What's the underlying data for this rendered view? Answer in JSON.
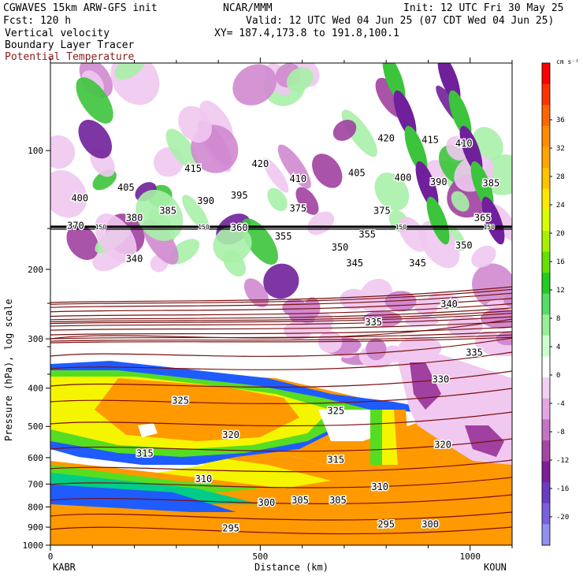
{
  "header": {
    "model": "CGWAVES 15km ARW-GFS init",
    "forecast": "Fcst:  120 h",
    "field1": "Vertical velocity",
    "field2": "Boundary Layer Tracer",
    "field3": "Potential Temperature",
    "org": "NCAR/MMM",
    "init": "Init: 12 UTC Fri 30 May 25",
    "valid": "Valid: 12 UTC Wed 04 Jun 25 (07 CDT Wed 04 Jun 25)",
    "xy": "XY= 187.4,173.8 to 191.8,100.1"
  },
  "colors": {
    "theta": "#7a1010",
    "field3_text": "#8b1a1a"
  },
  "chart_data": {
    "type": "heatmap",
    "ylabel": "Pressure (hPa), log scale",
    "xlabel": "Distance (km)",
    "x_range": [
      0,
      1100
    ],
    "x_ticks": [
      "0",
      "500",
      "1000"
    ],
    "x_tick_values": [
      0,
      500,
      1000
    ],
    "y_range_hpa": [
      1000,
      60
    ],
    "y_scale": "log",
    "y_ticks": [
      "100",
      "200",
      "300",
      "400",
      "500",
      "600",
      "700",
      "800",
      "900",
      "1000"
    ],
    "y_tick_values": [
      100,
      200,
      300,
      400,
      500,
      600,
      700,
      800,
      900,
      1000
    ],
    "left_station": "KABR",
    "right_station": "KOUN",
    "colorbar": {
      "unit": "cm s⁻¹",
      "labels": [
        "36",
        "32",
        "28",
        "24",
        "20",
        "16",
        "12",
        "8",
        "4",
        "0",
        "-4",
        "-8",
        "-12",
        "-16",
        "-20"
      ],
      "label_values": [
        36,
        32,
        28,
        24,
        20,
        16,
        12,
        8,
        4,
        0,
        -4,
        -8,
        -12,
        -16,
        -20
      ],
      "colors": [
        "#ff0000",
        "#ff3300",
        "#ff6600",
        "#ff8c00",
        "#ffa500",
        "#ffc400",
        "#ffe800",
        "#d8ff00",
        "#a8f000",
        "#66e000",
        "#22cc22",
        "#55dd66",
        "#99ee99",
        "#ccffcc",
        "#ffffff",
        "#f2d0f2",
        "#e2a6e2",
        "#c573c5",
        "#a446a4",
        "#7e1f95",
        "#6a3bc4",
        "#7a60dc",
        "#9090f0"
      ]
    },
    "theta_labels": [
      {
        "text": "420",
        "x": 500,
        "p": 108
      },
      {
        "text": "415",
        "x": 340,
        "p": 111
      },
      {
        "text": "410",
        "x": 590,
        "p": 118
      },
      {
        "text": "405",
        "x": 180,
        "p": 124
      },
      {
        "text": "400",
        "x": 70,
        "p": 132
      },
      {
        "text": "390",
        "x": 370,
        "p": 134
      },
      {
        "text": "395",
        "x": 450,
        "p": 130
      },
      {
        "text": "385",
        "x": 280,
        "p": 142
      },
      {
        "text": "380",
        "x": 200,
        "p": 148
      },
      {
        "text": "375",
        "x": 590,
        "p": 140
      },
      {
        "text": "370",
        "x": 60,
        "p": 155
      },
      {
        "text": "420",
        "x": 800,
        "p": 93
      },
      {
        "text": "415",
        "x": 905,
        "p": 94
      },
      {
        "text": "410",
        "x": 985,
        "p": 96
      },
      {
        "text": "405",
        "x": 730,
        "p": 114
      },
      {
        "text": "400",
        "x": 840,
        "p": 117
      },
      {
        "text": "390",
        "x": 925,
        "p": 120
      },
      {
        "text": "385",
        "x": 1050,
        "p": 121
      },
      {
        "text": "375",
        "x": 790,
        "p": 142
      },
      {
        "text": "365",
        "x": 1030,
        "p": 148
      },
      {
        "text": "360",
        "x": 450,
        "p": 157
      },
      {
        "text": "355",
        "x": 555,
        "p": 165
      },
      {
        "text": "355",
        "x": 755,
        "p": 163
      },
      {
        "text": "350",
        "x": 690,
        "p": 176
      },
      {
        "text": "345",
        "x": 725,
        "p": 193
      },
      {
        "text": "345",
        "x": 875,
        "p": 193
      },
      {
        "text": "350",
        "x": 985,
        "p": 174
      },
      {
        "text": "340",
        "x": 200,
        "p": 188
      },
      {
        "text": "340",
        "x": 950,
        "p": 245
      },
      {
        "text": "335",
        "x": 770,
        "p": 272
      },
      {
        "text": "335",
        "x": 1010,
        "p": 325
      },
      {
        "text": "330",
        "x": 930,
        "p": 380
      },
      {
        "text": "325",
        "x": 310,
        "p": 430
      },
      {
        "text": "325",
        "x": 680,
        "p": 457
      },
      {
        "text": "320",
        "x": 430,
        "p": 525
      },
      {
        "text": "320",
        "x": 935,
        "p": 557
      },
      {
        "text": "315",
        "x": 225,
        "p": 585
      },
      {
        "text": "315",
        "x": 680,
        "p": 607
      },
      {
        "text": "310",
        "x": 365,
        "p": 680
      },
      {
        "text": "310",
        "x": 785,
        "p": 712
      },
      {
        "text": "305",
        "x": 595,
        "p": 770
      },
      {
        "text": "305",
        "x": 685,
        "p": 770
      },
      {
        "text": "300",
        "x": 515,
        "p": 780
      },
      {
        "text": "300",
        "x": 905,
        "p": 885
      },
      {
        "text": "295",
        "x": 430,
        "p": 905
      },
      {
        "text": "295",
        "x": 800,
        "p": 885
      }
    ],
    "grid_labels": [
      {
        "text": "150",
        "x": 120,
        "p": 156
      },
      {
        "text": "150",
        "x": 365,
        "p": 156
      },
      {
        "text": "150",
        "x": 835,
        "p": 156
      },
      {
        "text": "150",
        "x": 1045,
        "p": 156
      }
    ]
  }
}
